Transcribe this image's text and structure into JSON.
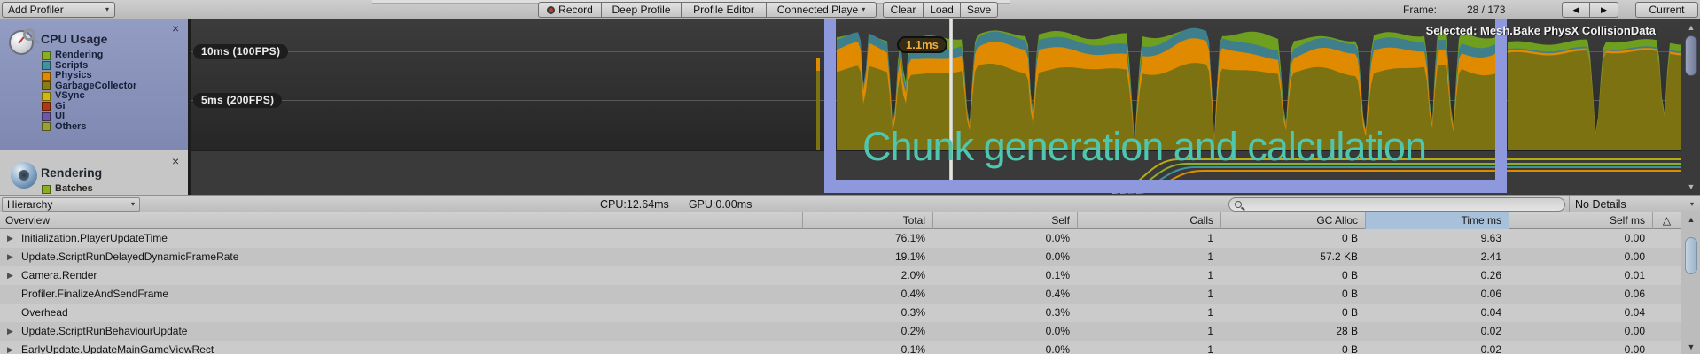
{
  "icons": {
    "caret": "▾",
    "up": "▲",
    "down": "▼",
    "prev": "◀",
    "next": "▶",
    "close": "×",
    "triangle": "△"
  },
  "toolbar": {
    "add_profiler": "Add Profiler",
    "record": "Record",
    "deep_profile": "Deep Profile",
    "profile_editor": "Profile Editor",
    "connected_player": "Connected Playe",
    "clear": "Clear",
    "load": "Load",
    "save": "Save",
    "frame_label": "Frame:",
    "frame_value": "28 / 173",
    "current": "Current"
  },
  "sidebar": {
    "cpu": {
      "title": "CPU Usage",
      "legend": [
        {
          "label": "Rendering",
          "color": "#8ab022"
        },
        {
          "label": "Scripts",
          "color": "#3f93a0"
        },
        {
          "label": "Physics",
          "color": "#e08a00"
        },
        {
          "label": "GarbageCollector",
          "color": "#8a7d16"
        },
        {
          "label": "VSync",
          "color": "#d0b80e"
        },
        {
          "label": "Gi",
          "color": "#b03a0e"
        },
        {
          "label": "UI",
          "color": "#7058a8"
        },
        {
          "label": "Others",
          "color": "#9aa032"
        }
      ]
    },
    "rendering": {
      "title": "Rendering",
      "legend": [
        {
          "label": "Batches",
          "color": "#8ab022"
        }
      ]
    }
  },
  "chart": {
    "selected_label": "Selected: Mesh.Bake PhysX CollisionData",
    "tooltip": "1.1ms",
    "gridlines": [
      {
        "label": "10ms (100FPS)"
      },
      {
        "label": "5ms (200FPS)"
      }
    ],
    "overlay_text": "Chunk generation and calculation",
    "colors": {
      "rendering": "#6f9f1e",
      "scripts": "#3f7f8c",
      "physics": "#e08a00",
      "garbage": "#7c7212",
      "bg_top": "#3c3c3c",
      "bg_bottom": "#262626",
      "render_pane": "#3a3a3a",
      "line_colors": [
        "#b7ac14",
        "#8fae2a",
        "#3f93a0",
        "#e08a00"
      ]
    }
  },
  "hierarchy_bar": {
    "mode": "Hierarchy",
    "cpu_time": "CPU:12.64ms",
    "gpu_time": "GPU:0.00ms",
    "search_placeholder": "",
    "details": "No Details"
  },
  "table": {
    "columns": [
      "Overview",
      "Total",
      "Self",
      "Calls",
      "GC Alloc",
      "Time ms",
      "Self ms"
    ],
    "rows": [
      {
        "arrow": "▶",
        "name": "Initialization.PlayerUpdateTime",
        "total": "76.1%",
        "self": "0.0%",
        "calls": "1",
        "gc": "0 B",
        "time": "9.63",
        "self_ms": "0.00"
      },
      {
        "arrow": "▶",
        "name": "Update.ScriptRunDelayedDynamicFrameRate",
        "total": "19.1%",
        "self": "0.0%",
        "calls": "1",
        "gc": "57.2 KB",
        "time": "2.41",
        "self_ms": "0.00"
      },
      {
        "arrow": "▶",
        "name": "Camera.Render",
        "total": "2.0%",
        "self": "0.1%",
        "calls": "1",
        "gc": "0 B",
        "time": "0.26",
        "self_ms": "0.01"
      },
      {
        "arrow": "",
        "name": "Profiler.FinalizeAndSendFrame",
        "total": "0.4%",
        "self": "0.4%",
        "calls": "1",
        "gc": "0 B",
        "time": "0.06",
        "self_ms": "0.06"
      },
      {
        "arrow": "",
        "name": "Overhead",
        "total": "0.3%",
        "self": "0.3%",
        "calls": "1",
        "gc": "0 B",
        "time": "0.04",
        "self_ms": "0.04"
      },
      {
        "arrow": "▶",
        "name": "Update.ScriptRunBehaviourUpdate",
        "total": "0.2%",
        "self": "0.0%",
        "calls": "1",
        "gc": "28 B",
        "time": "0.02",
        "self_ms": "0.00"
      },
      {
        "arrow": "▶",
        "name": "EarlyUpdate.UpdateMainGameViewRect",
        "total": "0.1%",
        "self": "0.0%",
        "calls": "1",
        "gc": "0 B",
        "time": "0.02",
        "self_ms": "0.00"
      }
    ]
  }
}
